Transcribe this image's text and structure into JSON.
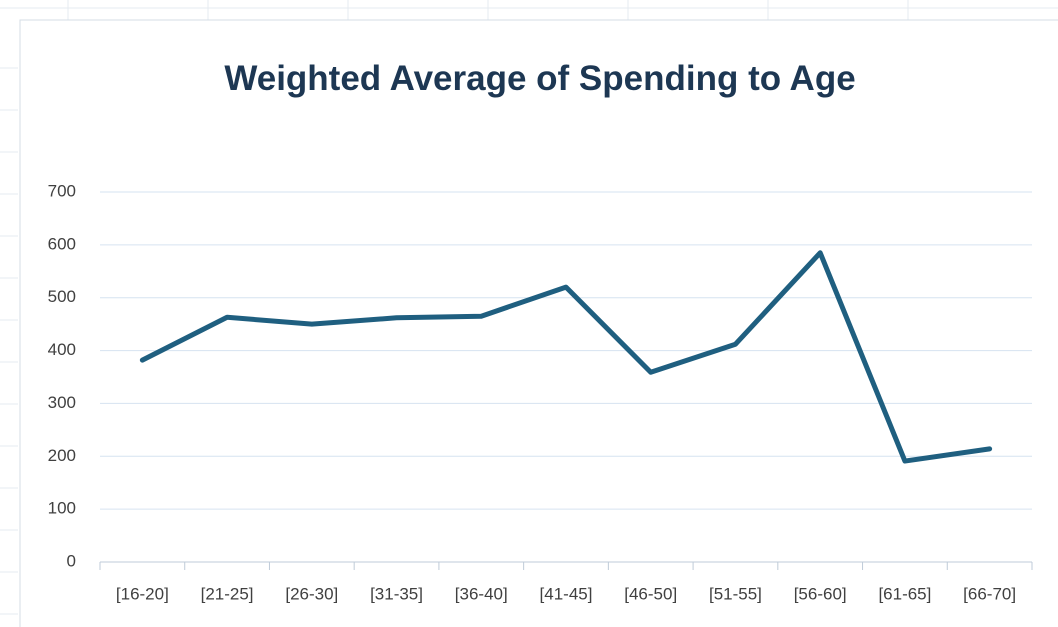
{
  "chart_data": {
    "type": "line",
    "title": "Weighted Average of Spending to Age",
    "categories": [
      "[16-20]",
      "[21-25]",
      "[26-30]",
      "[31-35]",
      "[36-40]",
      "[41-45]",
      "[46-50]",
      "[51-55]",
      "[56-60]",
      "[61-65]",
      "[66-70]"
    ],
    "values": [
      382,
      463,
      450,
      462,
      465,
      520,
      359,
      412,
      585,
      191,
      214
    ],
    "color": "#1f5f80",
    "ylim": [
      0,
      700
    ],
    "yticks": [
      0,
      100,
      200,
      300,
      400,
      500,
      600,
      700
    ],
    "grid": true
  }
}
